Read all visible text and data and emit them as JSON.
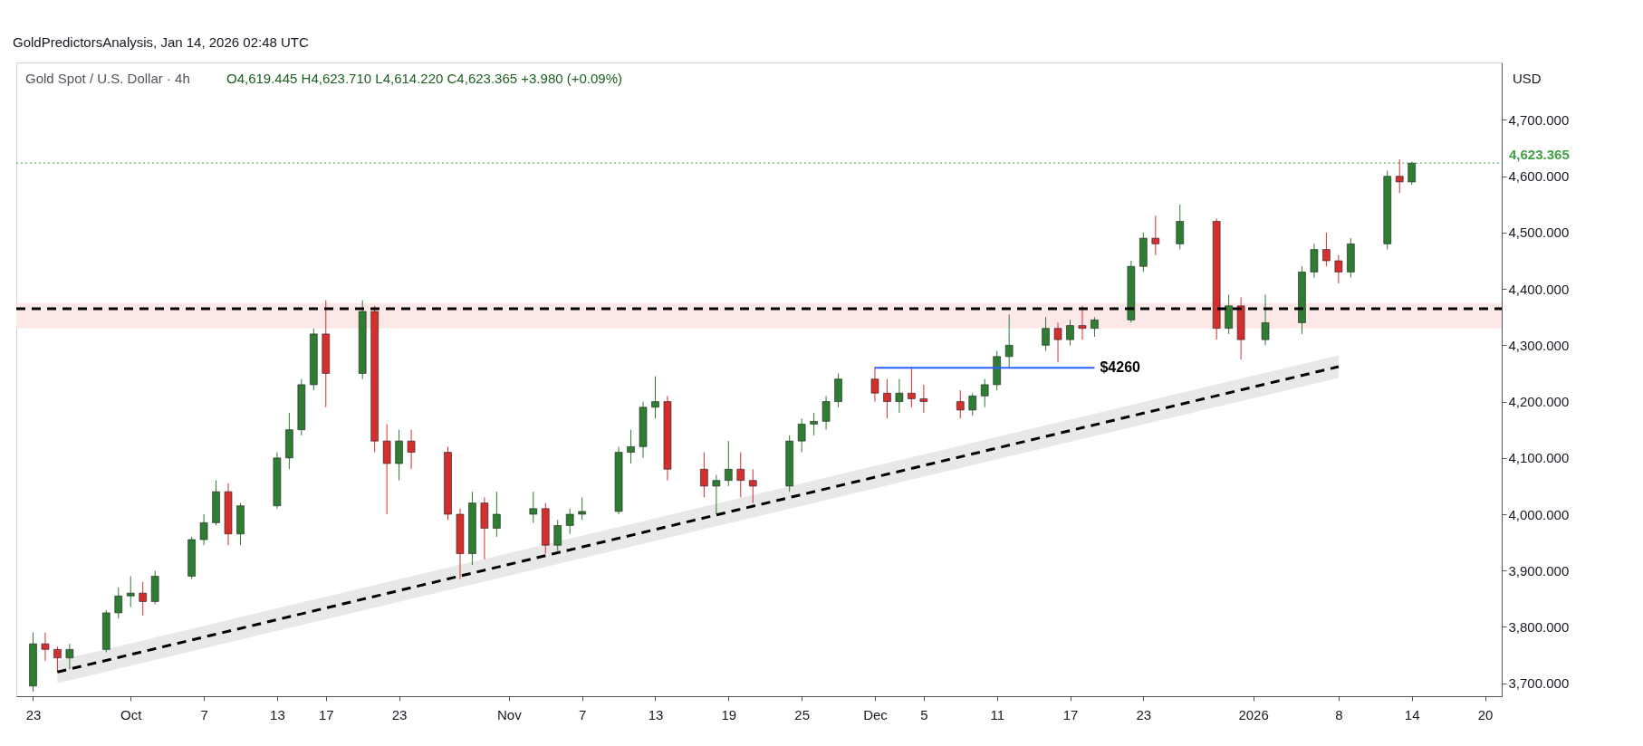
{
  "chart_data": {
    "type": "candlestick",
    "title": "Gold Spot / U.S. Dollar · 4h",
    "subtitle": "O4,619.445  H4,623.710  L4,614.220  C4,623.365  +3.980 (+0.09%)",
    "ylabel": "USD",
    "annotations": [
      "GoldPredictorsAnalysis, Jan 14, 2026 02:48 UTC",
      {
        "text": "$4260",
        "x": "2025-12-19",
        "y": 4260
      }
    ],
    "x": [
      "2025-09-23",
      "2025-09-24",
      "2025-09-25",
      "2025-09-26",
      "2025-09-29",
      "2025-09-30",
      "2025-10-01",
      "2025-10-02",
      "2025-10-03",
      "2025-10-06",
      "2025-10-07",
      "2025-10-08",
      "2025-10-09",
      "2025-10-10",
      "2025-10-13",
      "2025-10-14",
      "2025-10-15",
      "2025-10-16",
      "2025-10-17",
      "2025-10-20",
      "2025-10-21",
      "2025-10-22",
      "2025-10-23",
      "2025-10-24",
      "2025-10-27",
      "2025-10-28",
      "2025-10-29",
      "2025-10-30",
      "2025-10-31",
      "2025-11-03",
      "2025-11-04",
      "2025-11-05",
      "2025-11-06",
      "2025-11-07",
      "2025-11-10",
      "2025-11-11",
      "2025-11-12",
      "2025-11-13",
      "2025-11-14",
      "2025-11-17",
      "2025-11-18",
      "2025-11-19",
      "2025-11-20",
      "2025-11-21",
      "2025-11-24",
      "2025-11-25",
      "2025-11-26",
      "2025-11-27",
      "2025-11-28",
      "2025-12-01",
      "2025-12-02",
      "2025-12-03",
      "2025-12-04",
      "2025-12-05",
      "2025-12-08",
      "2025-12-09",
      "2025-12-10",
      "2025-12-11",
      "2025-12-12",
      "2025-12-15",
      "2025-12-16",
      "2025-12-17",
      "2025-12-18",
      "2025-12-19",
      "2025-12-22",
      "2025-12-23",
      "2025-12-24",
      "2025-12-26",
      "2025-12-29",
      "2025-12-30",
      "2025-12-31",
      "2026-01-02",
      "2026-01-05",
      "2026-01-06",
      "2026-01-07",
      "2026-01-08",
      "2026-01-09",
      "2026-01-12",
      "2026-01-13",
      "2026-01-14"
    ],
    "ohlc": [
      [
        3695,
        3790,
        3685,
        3770
      ],
      [
        3770,
        3790,
        3740,
        3760
      ],
      [
        3760,
        3765,
        3720,
        3745
      ],
      [
        3745,
        3770,
        3725,
        3760
      ],
      [
        3760,
        3830,
        3755,
        3825
      ],
      [
        3825,
        3870,
        3815,
        3855
      ],
      [
        3855,
        3890,
        3835,
        3860
      ],
      [
        3860,
        3880,
        3820,
        3845
      ],
      [
        3845,
        3900,
        3840,
        3890
      ],
      [
        3890,
        3960,
        3885,
        3955
      ],
      [
        3955,
        4000,
        3945,
        3985
      ],
      [
        3985,
        4060,
        3980,
        4040
      ],
      [
        4040,
        4055,
        3945,
        3965
      ],
      [
        3965,
        4020,
        3945,
        4015
      ],
      [
        4015,
        4110,
        4010,
        4100
      ],
      [
        4100,
        4180,
        4080,
        4150
      ],
      [
        4150,
        4240,
        4140,
        4230
      ],
      [
        4230,
        4330,
        4220,
        4320
      ],
      [
        4320,
        4380,
        4190,
        4250
      ],
      [
        4250,
        4380,
        4240,
        4360
      ],
      [
        4360,
        4370,
        4110,
        4130
      ],
      [
        4130,
        4160,
        4000,
        4090
      ],
      [
        4090,
        4150,
        4060,
        4130
      ],
      [
        4130,
        4150,
        4080,
        4110
      ],
      [
        4110,
        4120,
        3990,
        4000
      ],
      [
        4000,
        4010,
        3885,
        3930
      ],
      [
        3930,
        4040,
        3910,
        4020
      ],
      [
        4020,
        4030,
        3920,
        3975
      ],
      [
        3975,
        4040,
        3960,
        4000
      ],
      [
        4000,
        4040,
        3985,
        4010
      ],
      [
        4010,
        4020,
        3930,
        3945
      ],
      [
        3945,
        3990,
        3935,
        3980
      ],
      [
        3980,
        4010,
        3965,
        4000
      ],
      [
        4000,
        4030,
        3990,
        4005
      ],
      [
        4005,
        4120,
        4000,
        4110
      ],
      [
        4110,
        4150,
        4090,
        4120
      ],
      [
        4120,
        4200,
        4100,
        4190
      ],
      [
        4190,
        4245,
        4170,
        4200
      ],
      [
        4200,
        4210,
        4060,
        4080
      ],
      [
        4080,
        4110,
        4030,
        4050
      ],
      [
        4050,
        4070,
        4000,
        4060
      ],
      [
        4060,
        4130,
        4050,
        4080
      ],
      [
        4080,
        4110,
        4030,
        4060
      ],
      [
        4060,
        4080,
        4020,
        4050
      ],
      [
        4050,
        4140,
        4040,
        4130
      ],
      [
        4130,
        4170,
        4110,
        4160
      ],
      [
        4160,
        4180,
        4140,
        4165
      ],
      [
        4165,
        4210,
        4150,
        4200
      ],
      [
        4200,
        4250,
        4190,
        4240
      ],
      [
        4240,
        4262,
        4200,
        4215
      ],
      [
        4215,
        4240,
        4170,
        4200
      ],
      [
        4200,
        4240,
        4180,
        4215
      ],
      [
        4215,
        4262,
        4190,
        4205
      ],
      [
        4205,
        4230,
        4180,
        4200
      ],
      [
        4200,
        4220,
        4170,
        4185
      ],
      [
        4185,
        4215,
        4175,
        4210
      ],
      [
        4210,
        4240,
        4190,
        4230
      ],
      [
        4230,
        4290,
        4220,
        4280
      ],
      [
        4280,
        4355,
        4260,
        4300
      ],
      [
        4300,
        4350,
        4290,
        4330
      ],
      [
        4330,
        4340,
        4270,
        4310
      ],
      [
        4310,
        4345,
        4300,
        4335
      ],
      [
        4335,
        4370,
        4310,
        4330
      ],
      [
        4330,
        4350,
        4315,
        4345
      ],
      [
        4345,
        4450,
        4340,
        4440
      ],
      [
        4440,
        4500,
        4430,
        4490
      ],
      [
        4490,
        4530,
        4460,
        4480
      ],
      [
        4480,
        4550,
        4470,
        4520
      ],
      [
        4520,
        4525,
        4310,
        4330
      ],
      [
        4330,
        4390,
        4320,
        4370
      ],
      [
        4370,
        4385,
        4275,
        4310
      ],
      [
        4310,
        4390,
        4300,
        4340
      ],
      [
        4340,
        4440,
        4320,
        4430
      ],
      [
        4430,
        4480,
        4420,
        4470
      ],
      [
        4470,
        4500,
        4440,
        4450
      ],
      [
        4450,
        4460,
        4410,
        4430
      ],
      [
        4430,
        4490,
        4420,
        4480
      ],
      [
        4480,
        4610,
        4470,
        4600
      ],
      [
        4600,
        4630,
        4570,
        4590
      ],
      [
        4590,
        4626,
        4585,
        4623.365
      ]
    ],
    "colors": [
      "#2e7d32",
      "#d32f2f",
      "#d32f2f",
      "#2e7d32",
      "#2e7d32",
      "#2e7d32",
      "#2e7d32",
      "#d32f2f",
      "#2e7d32",
      "#2e7d32",
      "#2e7d32",
      "#2e7d32",
      "#d32f2f",
      "#2e7d32",
      "#2e7d32",
      "#2e7d32",
      "#2e7d32",
      "#2e7d32",
      "#d32f2f",
      "#2e7d32",
      "#d32f2f",
      "#d32f2f",
      "#2e7d32",
      "#d32f2f",
      "#d32f2f",
      "#d32f2f",
      "#2e7d32",
      "#d32f2f",
      "#2e7d32",
      "#2e7d32",
      "#d32f2f",
      "#2e7d32",
      "#2e7d32",
      "#2e7d32",
      "#2e7d32",
      "#2e7d32",
      "#2e7d32",
      "#2e7d32",
      "#d32f2f",
      "#d32f2f",
      "#2e7d32",
      "#2e7d32",
      "#d32f2f",
      "#d32f2f",
      "#2e7d32",
      "#2e7d32",
      "#2e7d32",
      "#2e7d32",
      "#2e7d32",
      "#d32f2f",
      "#d32f2f",
      "#2e7d32",
      "#d32f2f",
      "#d32f2f",
      "#d32f2f",
      "#2e7d32",
      "#2e7d32",
      "#2e7d32",
      "#2e7d32",
      "#2e7d32",
      "#d32f2f",
      "#2e7d32",
      "#d32f2f",
      "#2e7d32",
      "#2e7d32",
      "#2e7d32",
      "#d32f2f",
      "#2e7d32",
      "#d32f2f",
      "#2e7d32",
      "#d32f2f",
      "#2e7d32",
      "#2e7d32",
      "#2e7d32",
      "#d32f2f",
      "#d32f2f",
      "#2e7d32",
      "#2e7d32",
      "#d32f2f",
      "#2e7d32"
    ],
    "series": [
      {
        "type": "line",
        "x": [
          "2025-09-25",
          "2026-01-08"
        ],
        "values": [
          3720,
          4262
        ],
        "lower": [
          3700,
          4242
        ],
        "upper": [
          3740,
          4282
        ],
        "color": "#000000",
        "line_style": "dashed"
      },
      {
        "type": "line",
        "x": [
          "2025-12-01",
          "2025-12-19"
        ],
        "values": [
          4260,
          4260
        ],
        "color": "#2962ff",
        "line_style": "solid"
      }
    ],
    "bands": [
      {
        "axis": "y",
        "from": 4330,
        "to": 4375,
        "color": "#fde8e8"
      }
    ],
    "ref_lines": [
      {
        "axis": "y",
        "value": 4365,
        "color": "#000000",
        "line_style": "dashed"
      },
      {
        "axis": "y",
        "value": 4623.365,
        "label": "4,623.365",
        "color": "#43a047",
        "line_style": "dotted"
      }
    ],
    "xlim": [
      "2025-09-22",
      "2026-01-21"
    ],
    "xticks": [
      {
        "value": "2025-09-23",
        "label": "23"
      },
      {
        "value": "2025-10-01",
        "label": "Oct"
      },
      {
        "value": "2025-10-07",
        "label": "7"
      },
      {
        "value": "2025-10-13",
        "label": "13"
      },
      {
        "value": "2025-10-17",
        "label": "17"
      },
      {
        "value": "2025-10-23",
        "label": "23"
      },
      {
        "value": "2025-11-01",
        "label": "Nov"
      },
      {
        "value": "2025-11-07",
        "label": "7"
      },
      {
        "value": "2025-11-13",
        "label": "13"
      },
      {
        "value": "2025-11-19",
        "label": "19"
      },
      {
        "value": "2025-11-25",
        "label": "25"
      },
      {
        "value": "2025-12-01",
        "label": "Dec"
      },
      {
        "value": "2025-12-05",
        "label": "5"
      },
      {
        "value": "2025-12-11",
        "label": "11"
      },
      {
        "value": "2025-12-17",
        "label": "17"
      },
      {
        "value": "2025-12-23",
        "label": "23"
      },
      {
        "value": "2026-01-01",
        "label": "2026"
      },
      {
        "value": "2026-01-08",
        "label": "8"
      },
      {
        "value": "2026-01-14",
        "label": "14"
      },
      {
        "value": "2026-01-20",
        "label": "20"
      }
    ],
    "ylim": [
      3677,
      4802
    ],
    "yticks": [
      {
        "value": 3700,
        "label": "3,700.000"
      },
      {
        "value": 3800,
        "label": "3,800.000"
      },
      {
        "value": 3900,
        "label": "3,900.000"
      },
      {
        "value": 4000,
        "label": "4,000.000"
      },
      {
        "value": 4100,
        "label": "4,100.000"
      },
      {
        "value": 4200,
        "label": "4,200.000"
      },
      {
        "value": 4300,
        "label": "4,300.000"
      },
      {
        "value": 4400,
        "label": "4,400.000"
      },
      {
        "value": 4500,
        "label": "4,500.000"
      },
      {
        "value": 4600,
        "label": "4,600.000"
      },
      {
        "value": 4700,
        "label": "4,700.000"
      }
    ],
    "grid": false
  }
}
